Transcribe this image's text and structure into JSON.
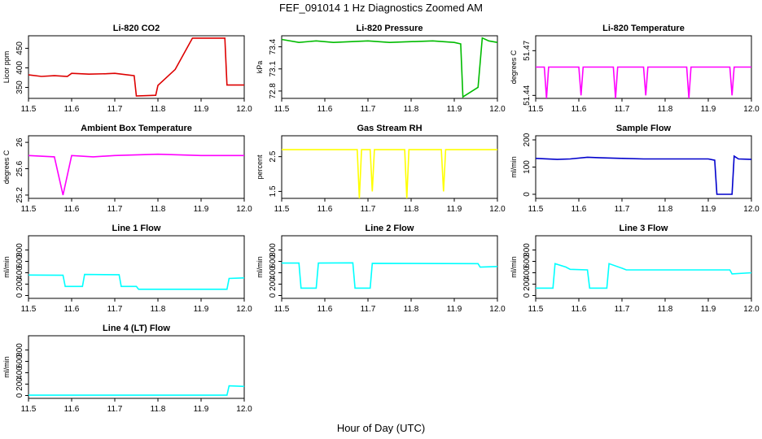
{
  "figure": {
    "title": "FEF_091014  1 Hz Diagnostics Zoomed AM",
    "xlabel": "Hour of Day (UTC)"
  },
  "chart_data": [
    {
      "type": "line",
      "title": "Li-820 CO2",
      "ylabel": "Licor ppm",
      "color": "#dd0000",
      "xlim": [
        11.5,
        12.0
      ],
      "ylim": [
        322,
        482
      ],
      "yticks": [
        350,
        400,
        450
      ],
      "x": [
        11.5,
        11.53,
        11.56,
        11.59,
        11.6,
        11.64,
        11.68,
        11.7,
        11.745,
        11.75,
        11.795,
        11.8,
        11.84,
        11.88,
        11.955,
        11.96,
        12.0
      ],
      "y": [
        382,
        378,
        380,
        378,
        386,
        384,
        385,
        386,
        380,
        328,
        330,
        355,
        396,
        476,
        476,
        356,
        356
      ]
    },
    {
      "type": "line",
      "title": "Li-820 Pressure",
      "ylabel": "kPa",
      "color": "#00bb00",
      "xlim": [
        11.5,
        12.0
      ],
      "ylim": [
        72.7,
        73.55
      ],
      "yticks": [
        72.8,
        73.1,
        73.4
      ],
      "x": [
        11.5,
        11.54,
        11.58,
        11.62,
        11.7,
        11.75,
        11.85,
        11.9,
        11.915,
        11.92,
        11.955,
        11.965,
        11.98,
        12.0
      ],
      "y": [
        73.5,
        73.46,
        73.48,
        73.46,
        73.48,
        73.46,
        73.48,
        73.46,
        73.44,
        72.72,
        72.85,
        73.52,
        73.48,
        73.46
      ]
    },
    {
      "type": "line",
      "title": "Li-820 Temperature",
      "ylabel": "degrees C",
      "color": "#ff00ff",
      "xlim": [
        11.5,
        12.0
      ],
      "ylim": [
        51.438,
        51.48
      ],
      "yticks": [
        51.44,
        51.47
      ],
      "x": [
        11.5,
        11.52,
        11.525,
        11.53,
        11.6,
        11.605,
        11.61,
        11.68,
        11.685,
        11.69,
        11.75,
        11.755,
        11.76,
        11.85,
        11.855,
        11.86,
        11.95,
        11.955,
        11.96,
        12.0
      ],
      "y": [
        51.459,
        51.459,
        51.438,
        51.459,
        51.459,
        51.44,
        51.459,
        51.459,
        51.438,
        51.459,
        51.459,
        51.44,
        51.459,
        51.459,
        51.438,
        51.459,
        51.459,
        51.44,
        51.459,
        51.459
      ]
    },
    {
      "type": "line",
      "title": "Ambient Box Temperature",
      "ylabel": "degrees C",
      "color": "#ff00ff",
      "xlim": [
        11.5,
        12.0
      ],
      "ylim": [
        25.15,
        26.1
      ],
      "yticks": [
        25.2,
        25.6,
        26.0
      ],
      "x": [
        11.5,
        11.56,
        11.58,
        11.6,
        11.65,
        11.7,
        11.8,
        11.9,
        11.95,
        12.0
      ],
      "y": [
        25.8,
        25.78,
        25.2,
        25.8,
        25.78,
        25.8,
        25.82,
        25.8,
        25.8,
        25.8
      ]
    },
    {
      "type": "line",
      "title": "Gas Stream RH",
      "ylabel": "percent",
      "color": "#ffff00",
      "xlim": [
        11.5,
        12.0
      ],
      "ylim": [
        1.3,
        3.1
      ],
      "yticks": [
        1.5,
        2.5
      ],
      "x": [
        11.5,
        11.675,
        11.68,
        11.685,
        11.705,
        11.71,
        11.715,
        11.785,
        11.79,
        11.795,
        11.87,
        11.875,
        11.88,
        12.0
      ],
      "y": [
        2.7,
        2.7,
        1.3,
        2.7,
        2.7,
        1.5,
        2.7,
        2.7,
        1.3,
        2.7,
        2.7,
        1.5,
        2.7,
        2.7
      ]
    },
    {
      "type": "line",
      "title": "Sample Flow",
      "ylabel": "ml/min",
      "color": "#0000cc",
      "xlim": [
        11.5,
        12.0
      ],
      "ylim": [
        -15,
        215
      ],
      "yticks": [
        0,
        100,
        200
      ],
      "x": [
        11.5,
        11.55,
        11.58,
        11.62,
        11.65,
        11.7,
        11.75,
        11.9,
        11.915,
        11.92,
        11.955,
        11.96,
        11.97,
        12.0
      ],
      "y": [
        132,
        128,
        130,
        136,
        134,
        132,
        130,
        130,
        125,
        0,
        0,
        140,
        130,
        128
      ]
    },
    {
      "type": "line",
      "title": "Line 1 Flow",
      "ylabel": "ml/min",
      "color": "#00ffff",
      "xlim": [
        11.5,
        12.0
      ],
      "ylim": [
        -50,
        1050
      ],
      "yticks": [
        0,
        200,
        400,
        600,
        800
      ],
      "x": [
        11.5,
        11.58,
        11.585,
        11.625,
        11.63,
        11.71,
        11.715,
        11.75,
        11.755,
        11.96,
        11.965,
        12.0
      ],
      "y": [
        360,
        355,
        160,
        160,
        370,
        365,
        160,
        160,
        110,
        110,
        300,
        310
      ]
    },
    {
      "type": "line",
      "title": "Line 2 Flow",
      "ylabel": "ml/min",
      "color": "#00ffff",
      "xlim": [
        11.5,
        12.0
      ],
      "ylim": [
        -50,
        1050
      ],
      "yticks": [
        0,
        200,
        400,
        600,
        800
      ],
      "x": [
        11.5,
        11.54,
        11.545,
        11.58,
        11.585,
        11.665,
        11.67,
        11.705,
        11.71,
        11.955,
        11.96,
        12.0
      ],
      "y": [
        570,
        570,
        130,
        130,
        570,
        575,
        130,
        130,
        565,
        560,
        500,
        510
      ]
    },
    {
      "type": "line",
      "title": "Line 3 Flow",
      "ylabel": "ml/min",
      "color": "#00ffff",
      "xlim": [
        11.5,
        12.0
      ],
      "ylim": [
        -50,
        1050
      ],
      "yticks": [
        0,
        200,
        400,
        600,
        800
      ],
      "x": [
        11.5,
        11.54,
        11.545,
        11.57,
        11.58,
        11.62,
        11.625,
        11.665,
        11.67,
        11.7,
        11.71,
        11.95,
        11.955,
        12.0
      ],
      "y": [
        130,
        130,
        560,
        500,
        460,
        450,
        130,
        130,
        560,
        480,
        450,
        450,
        380,
        400
      ]
    },
    {
      "type": "line",
      "title": "Line 4 (LT) Flow",
      "ylabel": "ml/min",
      "color": "#00ffff",
      "xlim": [
        11.5,
        12.0
      ],
      "ylim": [
        -50,
        1050
      ],
      "yticks": [
        0,
        200,
        400,
        600,
        800
      ],
      "x": [
        11.5,
        11.96,
        11.965,
        12.0
      ],
      "y": [
        5,
        5,
        170,
        160
      ]
    }
  ]
}
